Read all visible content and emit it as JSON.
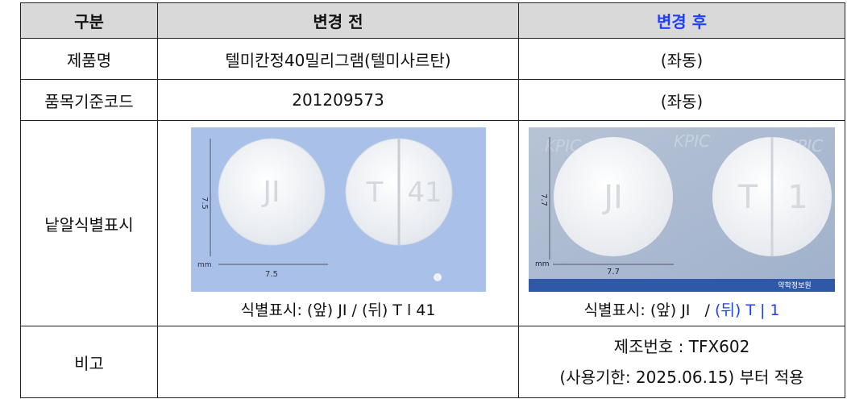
{
  "table": {
    "header": [
      "구분",
      "변경 전",
      "변경 후"
    ],
    "rows": [
      [
        "제품명",
        "텔미칸정40밀리그램(텔미사르탄)",
        "(좌동)"
      ],
      [
        "품목기준코드",
        "201209573",
        "(좌동)"
      ]
    ],
    "image_row": {
      "label": "낱알식별표시",
      "before": {
        "front": "JI",
        "back_left": "T",
        "back_right": "41",
        "height_label": "7.5",
        "width_label": "7.5",
        "unit": "mm",
        "caption": [
          "식별표시: (앞) JI",
          "/ (뒤) T l 41"
        ]
      },
      "after": {
        "front": "JI",
        "back_left": "T",
        "back_right": "1",
        "height_label": "7.7",
        "width_label": "7.7",
        "unit": "mm",
        "watermark": "KPIC",
        "source": "약학정보원",
        "caption": [
          "식별표시: (앞) JI   /",
          "(뒤) T | 1"
        ]
      }
    },
    "remarks": {
      "label": "비고",
      "after": [
        "제조번호 : TFX602",
        "(사용기한: 2025.06.15) 부터 적용"
      ]
    }
  }
}
